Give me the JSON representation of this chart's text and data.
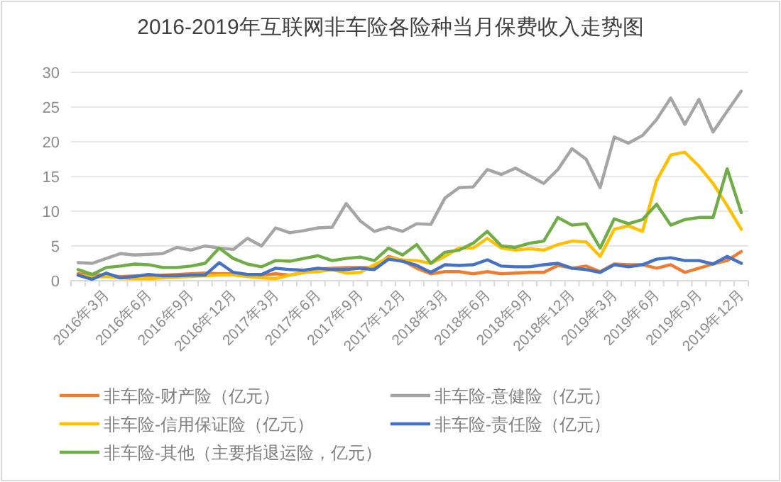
{
  "chart_data": {
    "type": "line",
    "title": "2016-2019年互联网非车险各险种当月保费收入走势图",
    "categories": [
      null,
      null,
      "2016年3月",
      null,
      null,
      "2016年6月",
      null,
      null,
      "2016年9月",
      null,
      null,
      "2016年12月",
      null,
      null,
      "2017年3月",
      null,
      null,
      "2017年6月",
      null,
      null,
      "2017年9月",
      null,
      null,
      "2017年12月",
      null,
      null,
      "2018年3月",
      null,
      null,
      "2018年6月",
      null,
      null,
      "2018年9月",
      null,
      null,
      "2018年12月",
      null,
      null,
      "2019年3月",
      null,
      null,
      "2019年6月",
      null,
      null,
      "2019年9月",
      null,
      null,
      "2019年12月"
    ],
    "ylim": [
      0,
      30
    ],
    "yticks": [
      0,
      5,
      10,
      15,
      20,
      25,
      30
    ],
    "grid": "y",
    "legend": "bottom",
    "line_style": "solid",
    "series": [
      {
        "name": "非车险-财产险（亿元）",
        "color": "#ed7d31",
        "values": [
          1.0,
          0.9,
          0.8,
          0.6,
          0.7,
          0.7,
          0.8,
          0.9,
          1.0,
          1.1,
          1.0,
          1.0,
          0.9,
          0.8,
          1.0,
          0.8,
          1.2,
          1.7,
          1.8,
          1.9,
          1.9,
          1.9,
          3.5,
          2.9,
          1.8,
          1.0,
          1.3,
          1.3,
          1.0,
          1.3,
          1.0,
          1.1,
          1.2,
          1.2,
          2.2,
          1.8,
          2.1,
          1.3,
          2.4,
          2.3,
          2.3,
          1.8,
          2.3,
          1.2,
          1.8,
          2.4,
          2.9,
          4.2
        ]
      },
      {
        "name": "非车险-意健险（亿元）",
        "color": "#a5a5a5",
        "values": [
          2.6,
          2.5,
          3.2,
          3.9,
          3.7,
          3.8,
          3.9,
          4.8,
          4.4,
          5.0,
          4.7,
          4.5,
          6.1,
          5.0,
          7.6,
          6.9,
          7.2,
          7.6,
          7.7,
          11.1,
          8.6,
          7.1,
          7.7,
          7.1,
          8.2,
          8.1,
          11.9,
          13.4,
          13.5,
          16.0,
          15.3,
          16.2,
          15.1,
          14.0,
          16.0,
          19.0,
          17.5,
          13.4,
          20.7,
          19.8,
          20.9,
          23.2,
          26.3,
          22.5,
          26.1,
          21.4,
          24.4,
          27.3
        ]
      },
      {
        "name": "非车险-信用保证险（亿元）",
        "color": "#ffc000",
        "values": [
          0.8,
          0.5,
          0.6,
          0.4,
          0.3,
          0.3,
          0.4,
          0.5,
          0.6,
          0.7,
          0.8,
          0.8,
          0.6,
          0.4,
          0.3,
          0.8,
          1.2,
          1.3,
          1.6,
          1.1,
          1.2,
          2.3,
          3.3,
          3.0,
          2.9,
          2.5,
          3.5,
          4.7,
          4.7,
          6.1,
          4.7,
          4.4,
          4.6,
          4.4,
          5.2,
          5.7,
          5.6,
          3.5,
          7.4,
          7.9,
          7.1,
          14.4,
          18.1,
          18.5,
          16.5,
          14.0,
          10.8,
          7.4
        ]
      },
      {
        "name": "非车险-责任险（亿元）",
        "color": "#4472c4",
        "values": [
          0.8,
          0.2,
          1.1,
          0.4,
          0.6,
          0.9,
          0.7,
          0.7,
          0.8,
          0.8,
          2.6,
          1.2,
          0.9,
          0.9,
          1.8,
          1.6,
          1.5,
          1.8,
          1.6,
          1.6,
          1.8,
          1.6,
          3.1,
          2.8,
          2.2,
          1.2,
          2.3,
          2.2,
          2.3,
          3.0,
          2.1,
          2.0,
          2.0,
          2.3,
          2.5,
          1.8,
          1.6,
          1.2,
          2.3,
          2.0,
          2.3,
          3.1,
          3.3,
          2.9,
          2.9,
          2.4,
          3.5,
          2.5
        ]
      },
      {
        "name": "非车险-其他（主要指退运险，亿元）",
        "color": "#70ad47",
        "values": [
          1.6,
          0.9,
          1.9,
          2.1,
          2.4,
          2.3,
          1.9,
          1.9,
          2.1,
          2.5,
          4.7,
          3.2,
          2.4,
          2.0,
          2.9,
          2.8,
          3.2,
          3.6,
          2.9,
          3.2,
          3.4,
          2.9,
          4.7,
          3.7,
          5.2,
          2.5,
          4.1,
          4.4,
          5.4,
          7.1,
          5.0,
          4.8,
          5.4,
          5.7,
          9.1,
          8.0,
          8.2,
          4.7,
          8.9,
          8.2,
          8.8,
          11.0,
          8.0,
          8.8,
          9.1,
          9.1,
          16.1,
          9.8
        ]
      }
    ]
  }
}
